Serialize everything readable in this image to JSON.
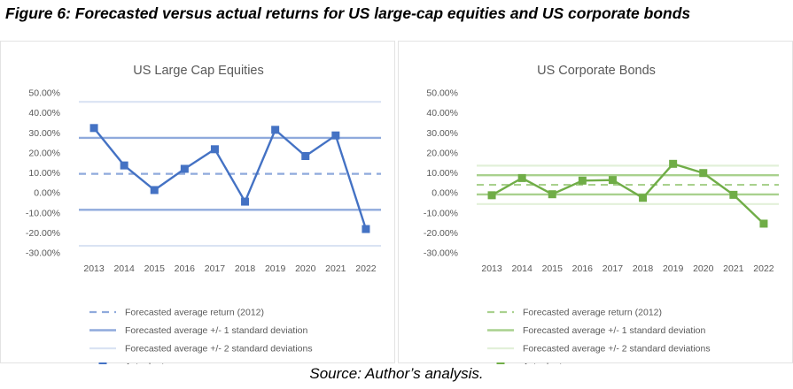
{
  "figure_title": "Figure 6: Forecasted versus actual returns for US large-cap equities and US corporate bonds",
  "source_note": "Source: Author’s analysis.",
  "chart_data": [
    {
      "type": "line",
      "title": "US Large Cap Equities",
      "accent_color": "#4472c4",
      "light_color": "#8faadc",
      "faint_color": "#dae3f3",
      "x": [
        "2013",
        "2014",
        "2015",
        "2016",
        "2017",
        "2018",
        "2019",
        "2020",
        "2021",
        "2022"
      ],
      "yticks": [
        "50.00%",
        "40.00%",
        "30.00%",
        "20.00%",
        "10.00%",
        "0.00%",
        "-10.00%",
        "-20.00%",
        "-30.00%"
      ],
      "ylim": [
        -30,
        50
      ],
      "grid": false,
      "legend_position": "bottom",
      "series": [
        {
          "name": "Forecasted average return (2012)",
          "style": "dashed",
          "values": [
            9.5,
            9.5,
            9.5,
            9.5,
            9.5,
            9.5,
            9.5,
            9.5,
            9.5,
            9.5
          ]
        },
        {
          "name": "Forecasted average +/- 1 standard deviation",
          "style": "band1",
          "upper": 27.5,
          "lower": -8.5
        },
        {
          "name": "Forecasted average +/- 2 standard deviations",
          "style": "band2",
          "upper": 45.5,
          "lower": -26.5
        },
        {
          "name": "Actual returns",
          "style": "markers",
          "values": [
            32.4,
            13.7,
            1.4,
            12.0,
            21.8,
            -4.4,
            31.5,
            18.4,
            28.7,
            -18.1
          ]
        }
      ]
    },
    {
      "type": "line",
      "title": "US Corporate Bonds",
      "accent_color": "#70ad47",
      "light_color": "#a9d18e",
      "faint_color": "#e2f0d9",
      "x": [
        "2013",
        "2014",
        "2015",
        "2016",
        "2017",
        "2018",
        "2019",
        "2020",
        "2021",
        "2022"
      ],
      "yticks": [
        "50.00%",
        "40.00%",
        "30.00%",
        "20.00%",
        "10.00%",
        "0.00%",
        "-10.00%",
        "-20.00%",
        "-30.00%"
      ],
      "ylim": [
        -30,
        50
      ],
      "grid": false,
      "legend_position": "bottom",
      "series": [
        {
          "name": "Forecasted average return (2012)",
          "style": "dashed",
          "values": [
            4.0,
            4.0,
            4.0,
            4.0,
            4.0,
            4.0,
            4.0,
            4.0,
            4.0,
            4.0
          ]
        },
        {
          "name": "Forecasted average +/- 1 standard deviation",
          "style": "band1",
          "upper": 8.8,
          "lower": -0.8
        },
        {
          "name": "Forecasted average +/- 2 standard deviations",
          "style": "band2",
          "upper": 13.6,
          "lower": -5.6
        },
        {
          "name": "Actual returns",
          "style": "markers",
          "values": [
            -1.2,
            7.4,
            -0.7,
            6.1,
            6.4,
            -2.5,
            14.5,
            9.9,
            -1.0,
            -15.4
          ]
        }
      ]
    }
  ]
}
